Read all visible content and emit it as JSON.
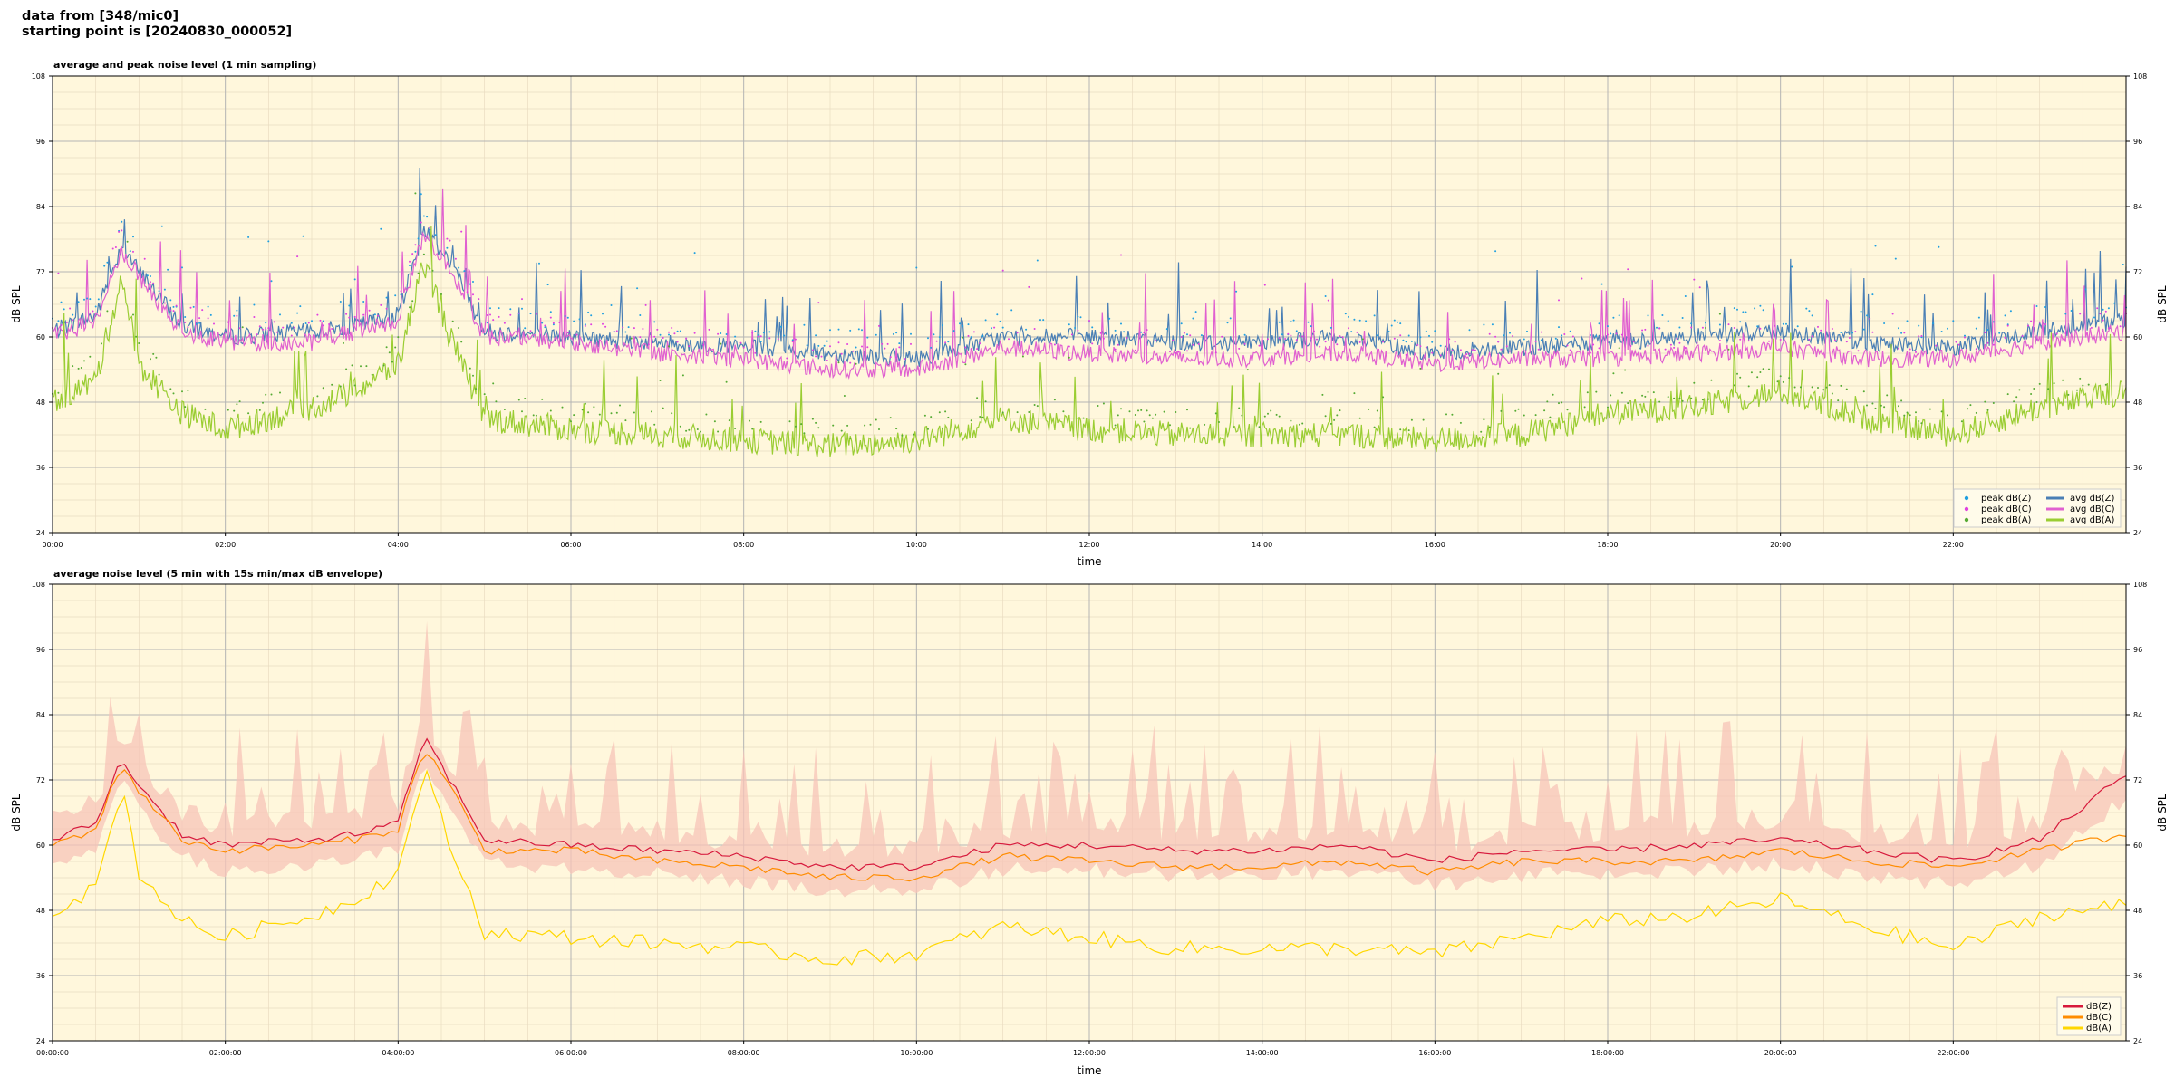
{
  "header": {
    "line1": "data from [348/mic0]",
    "line2": "starting point is [20240830_000052]"
  },
  "colors": {
    "plot_bg": "#fff7dc",
    "peak_z": "#1f9fe0",
    "peak_c": "#e040e0",
    "peak_a": "#55aa33",
    "avg_z": "#4a7fb5",
    "avg_c": "#e060d0",
    "avg_a": "#9acd32",
    "db_z": "#d7193c",
    "db_c": "#ff8c00",
    "db_a": "#ffd700",
    "envelope": "#f7c4b8"
  },
  "chart_data": [
    {
      "type": "line",
      "title": "average and peak noise level (1 min sampling)",
      "xlabel": "time",
      "ylabel": "dB SPL",
      "ylim": [
        24,
        108
      ],
      "xlim_hours": [
        0,
        24
      ],
      "yticks": [
        "24",
        "36",
        "48",
        "60",
        "72",
        "84",
        "96",
        "108"
      ],
      "xticks": [
        "00:00",
        "02:00",
        "04:00",
        "06:00",
        "08:00",
        "10:00",
        "12:00",
        "14:00",
        "16:00",
        "18:00",
        "20:00",
        "22:00"
      ],
      "grid": true,
      "legend_position": "bottom-right",
      "legend": [
        "peak dB(Z)",
        "peak dB(C)",
        "peak dB(A)",
        "avg dB(Z)",
        "avg dB(C)",
        "avg dB(A)"
      ],
      "series": [
        {
          "name": "avg dB(Z)",
          "hours": [
            0,
            0.5,
            0.8,
            1.0,
            1.5,
            2.0,
            3.0,
            3.5,
            4.0,
            4.3,
            4.6,
            5.0,
            6.0,
            7.0,
            8.0,
            9.0,
            10.0,
            11.0,
            12.0,
            13.0,
            14.0,
            15.0,
            16.0,
            17.0,
            18.0,
            19.0,
            20.0,
            21.0,
            22.0,
            23.0,
            24.0
          ],
          "values": [
            61,
            64,
            77,
            72,
            62,
            60,
            61,
            62,
            64,
            80,
            74,
            61,
            60,
            59,
            58,
            57,
            56,
            60,
            60,
            59,
            59,
            60,
            57,
            58,
            59,
            60,
            61,
            59,
            58,
            61,
            63
          ]
        },
        {
          "name": "avg dB(C)",
          "hours": [
            0,
            0.5,
            0.8,
            1.0,
            1.5,
            2.0,
            3.0,
            3.5,
            4.0,
            4.3,
            4.6,
            5.0,
            6.0,
            7.0,
            8.0,
            9.0,
            10.0,
            11.0,
            12.0,
            13.0,
            14.0,
            15.0,
            16.0,
            17.0,
            18.0,
            19.0,
            20.0,
            21.0,
            22.0,
            23.0,
            24.0
          ],
          "values": [
            60,
            63,
            76,
            71,
            61,
            59,
            59,
            61,
            63,
            79,
            73,
            60,
            59,
            57,
            56,
            54,
            54,
            58,
            57,
            56,
            56,
            57,
            55,
            56,
            56,
            57,
            58,
            56,
            56,
            59,
            61
          ]
        },
        {
          "name": "avg dB(A)",
          "hours": [
            0,
            0.5,
            0.8,
            1.0,
            1.5,
            2.0,
            3.0,
            3.5,
            4.0,
            4.3,
            4.6,
            5.0,
            6.0,
            7.0,
            8.0,
            9.0,
            10.0,
            11.0,
            12.0,
            13.0,
            14.0,
            15.0,
            16.0,
            17.0,
            18.0,
            19.0,
            20.0,
            21.0,
            22.0,
            23.0,
            24.0
          ],
          "values": [
            48,
            52,
            71,
            55,
            46,
            43,
            47,
            50,
            55,
            74,
            60,
            45,
            43,
            42,
            41,
            40,
            41,
            45,
            43,
            42,
            42,
            42,
            41,
            42,
            46,
            47,
            50,
            45,
            42,
            47,
            50
          ]
        }
      ]
    },
    {
      "type": "line",
      "title": "average noise level (5 min with 15s min/max dB envelope)",
      "xlabel": "time",
      "ylabel": "dB SPL",
      "ylim": [
        24,
        108
      ],
      "xlim_hours": [
        0,
        24
      ],
      "yticks": [
        "24",
        "36",
        "48",
        "60",
        "72",
        "84",
        "96",
        "108"
      ],
      "xticks": [
        "00:00:00",
        "02:00:00",
        "04:00:00",
        "06:00:00",
        "08:00:00",
        "10:00:00",
        "12:00:00",
        "14:00:00",
        "16:00:00",
        "18:00:00",
        "20:00:00",
        "22:00:00"
      ],
      "grid": true,
      "legend_position": "bottom-right",
      "legend": [
        "dB(Z)",
        "dB(C)",
        "dB(A)"
      ],
      "series": [
        {
          "name": "dB(Z)",
          "hours": [
            0,
            0.5,
            0.8,
            1.0,
            1.5,
            2.0,
            3.0,
            3.5,
            4.0,
            4.3,
            4.6,
            5.0,
            6.0,
            7.0,
            8.0,
            9.0,
            10.0,
            11.0,
            12.0,
            13.0,
            14.0,
            15.0,
            16.0,
            17.0,
            18.0,
            19.0,
            20.0,
            21.0,
            22.0,
            23.0,
            24.0
          ],
          "values": [
            61,
            64,
            76,
            71,
            62,
            60,
            61,
            62,
            64,
            80,
            72,
            61,
            60,
            59,
            58,
            56,
            56,
            60,
            60,
            59,
            59,
            60,
            57,
            59,
            59,
            60,
            61,
            59,
            57,
            61,
            73
          ]
        },
        {
          "name": "dB(C)",
          "hours": [
            0,
            0.5,
            0.8,
            1.0,
            1.5,
            2.0,
            3.0,
            3.5,
            4.0,
            4.3,
            4.6,
            5.0,
            6.0,
            7.0,
            8.0,
            9.0,
            10.0,
            11.0,
            12.0,
            13.0,
            14.0,
            15.0,
            16.0,
            17.0,
            18.0,
            19.0,
            20.0,
            21.0,
            22.0,
            23.0,
            24.0
          ],
          "values": [
            60,
            63,
            75,
            70,
            61,
            59,
            60,
            61,
            63,
            78,
            71,
            59,
            59,
            57,
            56,
            54,
            54,
            58,
            57,
            56,
            56,
            57,
            55,
            57,
            57,
            57,
            59,
            57,
            56,
            59,
            62
          ]
        },
        {
          "name": "dB(A)",
          "hours": [
            0,
            0.5,
            0.8,
            1.0,
            1.5,
            2.0,
            3.0,
            3.5,
            4.0,
            4.3,
            4.6,
            5.0,
            6.0,
            7.0,
            8.0,
            9.0,
            10.0,
            11.0,
            12.0,
            13.0,
            14.0,
            15.0,
            16.0,
            17.0,
            18.0,
            19.0,
            20.0,
            21.0,
            22.0,
            23.0,
            24.0
          ],
          "values": [
            48,
            52,
            71,
            55,
            46,
            43,
            47,
            50,
            55,
            74,
            60,
            44,
            43,
            42,
            41,
            39,
            40,
            45,
            43,
            41,
            41,
            41,
            40,
            43,
            46,
            47,
            50,
            45,
            41,
            47,
            49
          ]
        }
      ]
    }
  ]
}
